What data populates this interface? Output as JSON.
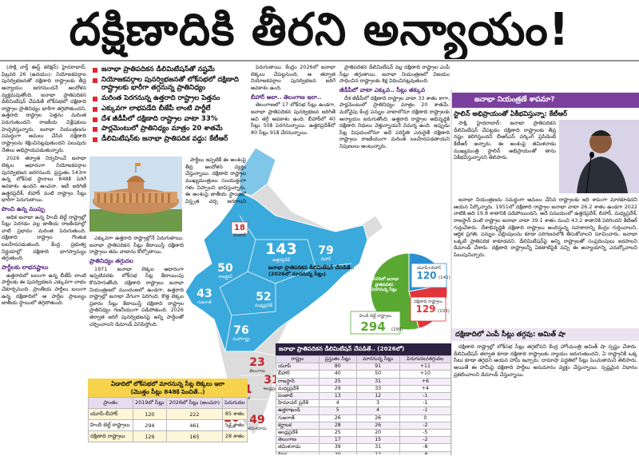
{
  "headline": "దక్షిణాదికి తీరని అన్యాయం!",
  "bullets": [
    "జనాభా ప్రాతిపదికన డీలిమిటేషన్‌తో నష్టమే",
    "నియోజకవర్గాల పునర్విభజనతో లోక్‌సభలో దక్షిణాది రాష్ట్రాలకు భారీగా తగ్గనున్న ప్రాతినిధ్యం",
    "మరింత పెరగనున్న ఉత్తరాది రాష్ట్రాల పెత్తనం",
    "ఎక్కువగా లాభపడేది బీజేపీ లాంటి పార్టీలే",
    "దేశ జీడీపీలో దక్షిణాది రాష్ట్రాల వాటా 33%",
    "పార్లమెంటులో ప్రాతినిధ్యం మాత్రం 20 శాతమే",
    "డీలిమిటేషన్‌కు జనాభా ప్రాతిపదిక వద్దు: కేటీఆర్"
  ],
  "columns": {
    "c1": [
      {
        "p": "(సాక్షి నార్త్ ఈస్ట్ కలెక్షన్) హైదరాబాద్, ఫిబ్రవరి 26 (ఉదయం): నియోజకవర్గాల పునర్విభజనతో దక్షిణాది రాష్ట్రాలకు తీవ్ర అన్యాయం జరగనుందనే ఆందోళన వ్యక్తమవుతోంది. జనాభా ప్రాతిపదికన డీలిమిటేషన్ చేపడితే లోక్‌సభలో దక్షిణాది రాష్ట్రాల ప్రాతినిధ్యం భారీగా తగ్గిపోతుందని, ఉత్తరాది రాష్ట్రాల పెత్తనం మరింత పెరుగుతుందని రాజకీయ విశ్లేషకులు హెచ్చరిస్తున్నారు. జనాభా నియంత్రణను సమర్థంగా అమలు చేసిన దక్షిణాది రాష్ట్రాలను శిక్షించినట్లవుతుందని పలువురు నేతలు అభిప్రాయపడుతున్నారు."
      },
      {
        "p": "2026 తర్వాత నిర్వహించే జనాభా లెక్కల ఆధారంగా నియోజకవర్గాల పునర్విభజన జరగనుంది. ప్రస్తుతం 543గా ఉన్న లోక్‌సభ స్థానాలు 848కి పెరిగే అవకాశం ఉందని అంచనా. అదే జరిగితే ఉత్తరప్రదేశ్, బిహార్ వంటి రాష్ట్రాల సీట్లు భారీగా పెరుగుతాయి."
      },
      {
        "h": "పొంచి ఉన్న ముప్పు"
      },
      {
        "p": "అధిక జనాభా ఉన్న హిందీ బెల్ట్ రాష్ట్రాల్లో సీట్లు పెరగడం వల్ల జాతీయ రాజకీయాల్లో వాటి ప్రభావం మరింత పెరుగుతుంది. దక్షిణాది రాష్ట్రాల గొంతుక బలహీనపడుతుంది. కేంద్ర ప్రభుత్వ నిర్ణయాల్లో దక్షిణాది భాగస్వామ్యం తగ్గుతుంది."
      },
      {
        "h": "పార్టీలకు లాభనష్టాలు"
      },
      {
        "p": "ఉత్తరాదిలో బలంగా ఉన్న బీజేపీ లాంటి పార్టీలకు ఈ పునర్విభజన ఎక్కువగా లాభం చేకూర్చనుంది. ప్రాంతీయ పార్టీలు బలంగా ఉన్న దక్షిణాదిలో ఆ పార్టీల ప్రాబల్యం జాతీయ స్థాయిలో తగ్గిపోతుంది."
      }
    ],
    "c2": [
      {
        "p": "ఎక్కువగా ఉత్తరాది రాష్ట్రాల్లోనే పెరుగుతాయి. జనాభా ప్రాతిపదికన సీట్లు కేటాయిస్తే దక్షిణాది రాష్ట్రాలు తమ వాటాను కోల్పోతాయి."
      },
      {
        "h": "ప్రాతినిధ్యం తగ్గుదల"
      },
      {
        "p": "1971 జనాభా లెక్కల ఆధారంగా ఇప్పటివరకు లోక్‌సభ సీట్ల కేటాయింపు కొనసాగుతోంది. దక్షిణాది రాష్ట్రాలు జనాభా నియంత్రణలో ముందంజలో ఉండగా, ఉత్తరాది రాష్ట్రాల్లో జనాభా వేగంగా పెరిగింది. కొత్త లెక్కల ప్రకారం సీట్లు కేటాయిస్తే దక్షిణాది రాష్ట్రాల ప్రాతినిధ్యం గణనీయంగా పడిపోతుంది. 2026 తర్వాత జరిగే పునర్విభజనపై అన్ని పార్టీలతో చర్చించాలని డిమాండ్ వినిపిస్తోంది."
      }
    ],
    "c2b": [
      {
        "p": "పార్టీలు ఇప్పటికే ఈ అంశంపై తీవ్ర ఆందోళన వ్యక్తం చేస్తున్నాయి. దక్షిణాది రాష్ట్రాల ముఖ్యమంత్రులు సంయుక్తంగా గళం విప్పాలని భావిస్తున్నారు. ఈ అంశంపై జాతీయ స్థాయిలో విస్తృత చర్చ జరగాలని కోరుతున్నారు."
      }
    ],
    "c3": [
      {
        "p": "పెరుగుతాయి. కేంద్రం 2026లో జనాభా లెక్కలు చేపట్టనుంది. ఆ తర్వాత నియోజకవర్గాల పునర్విభజన జరిగే అవకాశం ఉంది."
      },
      {
        "h": "బీహార్ అలా.. తెలంగాణ ఇలా.."
      },
      {
        "p": "తెలంగాణలో 17 లోక్‌సభ సీట్లు ఉండగా, జనాభా ప్రాతిపదికన పునర్విభజన జరిగితే అవి తగ్గే అవకాశం ఉంది. బీహార్‌లో 40 సీట్లు 50కి పెరగనున్నాయి. ఉత్తరప్రదేశ్‌లో 80 సీట్లు 91కి చేరనున్నాయి."
      }
    ],
    "c4": [
      {
        "p": "ప్రాతిపదికన డీలిమిటేషన్ వల్ల దక్షిణాది రాష్ట్రాల ఎంపీ సీట్లు తగ్గుతాయి. జనాభా నియంత్రణలో విజయం సాధించిన రాష్ట్రాలకు శిక్ష విధించినట్లవుతుంది."
      },
      {
        "h": "జీడీపీలో వాటా ఎక్కువ.. సీట్లు తక్కువ"
      },
      {
        "p": "దేశ జీడీపీలో దక్షిణాది రాష్ట్రాల వాటా 33 శాతం కాగా, పార్లమెంటులో ప్రాతినిధ్యం మాత్రం 20 శాతమే. మరోవైపు కేంద్ర పన్నుల వాటాలోనూ దక్షిణాది రాష్ట్రాలకు అన్యాయం జరుగుతోంది. ఉత్తరాది రాష్ట్రాల అభివృద్ధికి దక్షిణాది నిధులు వెళ్తున్నాయనే విమర్శ ఉంది. ఇప్పుడు సీట్ల విషయంలోనూ అదే పరిస్థితి ఎదురైతే దక్షిణాది రాష్ట్రాలు రాజకీయంగా మరింత బలహీనపడతాయని నిపుణులు అంటున్నారు."
      }
    ],
    "r1": [
      {
        "p": "సాక్షి, హైదరాబాద్: జనాభా ప్రాతిపదికన డీలిమిటేషన్ చేపట్టడం దక్షిణాది రాష్ట్రాలకు తీవ్ర నష్టం కలిగిస్తుందని బీఆర్‌ఎస్ వర్కింగ్ ప్రెసిడెంట్ కేటీఆర్ అన్నారు. ఈ అంశంపై తమిళనాడు ముఖ్యమంత్రి స్టాలిన్ అభిప్రాయంతో తాను ఏకీభవిస్తున్నానని తెలిపారు."
      }
    ],
    "r2": [
      {
        "p": "జనాభా నియంత్రణను సమర్థంగా అమలు చేసిన రాష్ట్రాలకు ఇది శాపంగా మారకూడదని ఆయన పేర్కొన్నారు. 1951లో దక్షిణాది రాష్ట్రాల జనాభా వాటా 26.2 శాతం ఉండగా 2022 నాటికి అది 19.8 శాతానికి పడిపోయిందని, అదే సమయంలో ఉత్తరప్రదేశ్, బిహార్, మధ్యప్రదేశ్, రాజస్థాన్ వంటి రాష్ట్రాల జనాభా వాటా 39.1 శాతం నుంచి 43.2 శాతానికి పెరిగిందని కేటీఆర్ గుర్తుచేశారు. దేశాభివృద్ధికి దక్షిణాది రాష్ట్రాలు అందిస్తున్న సహకారాన్ని కేంద్రం గుర్తించాలని, ఆర్థిక ప్రగతి, పన్నుల చెల్లింపులను కూడా పరిగణనలోకి తీసుకోవాలని సూచించారు. జనాభా ఒక్కటే ప్రాతిపదిక కాకూడదని, డీలిమిటేషన్‌పై అన్ని రాష్ట్రాలతో సంప్రదింపులు జరపాలని డిమాండ్ చేశారు. దక్షిణాది రాష్ట్రాలన్నీ ఏకతాటిపైకి వచ్చి ఈ అన్యాయాన్ని ఎదుర్కోవాలని పిలుపునిచ్చారు."
      }
    ],
    "r3": [
      {
        "p": "దక్షిణాది రాష్ట్రాల్లో లోక్‌సభ సీట్లు తగ్గబోవని కేంద్ర హోంమంత్రి అమిత్ షా స్పష్టం చేశారు. డీలిమిటేషన్ తర్వాత కూడా దక్షిణాది రాష్ట్రాలకు న్యాయం జరుగుతుందని, ఏ రాష్ట్రానికీ ఒక్క సీటు కూడా తగ్గదని ఆయన హామీ ఇచ్చారు. దామాషా పద్ధతిలో సీట్లు పెంచుతామని తెలిపారు. అయితే ఈ హామీపై దక్షిణాది పార్టీలు అనుమానం వ్యక్తం చేస్తున్నాయి. స్పష్టమైన విధానం ప్రకటించాలని డిమాండ్ చేస్తున్నాయి."
      }
    ]
  },
  "map": {
    "caption_title": "జనాభా ప్రాతిపదికన డీలిమిటేషన్ చేపడితే..",
    "caption_sub": "(2026లో మారనున్న సీట్లు)",
    "states": [
      {
        "name": "పంజాబ్",
        "seats": 18
      },
      {
        "name": "ఉత్తరప్రదేశ్",
        "seats": 143
      },
      {
        "name": "బిహార్",
        "seats": 79
      },
      {
        "name": "రాజస్థాన్",
        "seats": 50
      },
      {
        "name": "గుజరాత్",
        "seats": 43
      },
      {
        "name": "మధ్యప్రదేశ్",
        "seats": 52
      },
      {
        "name": "మహారాష్ట్ర",
        "seats": 76
      },
      {
        "name": "తెలంగాణ",
        "seats": 23
      },
      {
        "name": "ఆంధ్రప్రదేశ్",
        "seats": 31
      },
      {
        "name": "కర్ణాటక",
        "seats": 41
      },
      {
        "name": "కేరళ",
        "seats": 20
      },
      {
        "name": "తమిళనాడు",
        "seats": 49
      }
    ]
  },
  "pie": {
    "caption": "2026లో జనాభా ప్రాతిపదికన పెరగనున్న సీట్లు",
    "slices": [
      {
        "label": "యూపీ+బిహార్",
        "value": 120,
        "previous": "(141)",
        "color": "#2b8fd3"
      },
      {
        "label": "దక్షిణాది రాష్ట్రాలు",
        "value": 129,
        "previous": "(103)",
        "color": "#e2343a"
      },
      {
        "label": "హిందీ బెల్ట్ రాష్ట్రాలు",
        "value": 294,
        "previous": "(299)",
        "color": "#5aa933"
      }
    ]
  },
  "table_states": {
    "title": "జనాభా ప్రాతిపదికన డీలిమిటేషన్ చేపడితే.. (2026లో)",
    "header": [
      "రాష్ట్రం",
      "ప్రస్తుతం సీట్లు",
      "మారనున్న సీట్లు",
      "పెరుగుదల/తగ్గుదల"
    ],
    "rows": [
      [
        "యూపీ",
        80,
        91,
        "+11"
      ],
      [
        "బీహార్",
        40,
        50,
        "+10"
      ],
      [
        "రాజస్థాన్",
        25,
        31,
        "+6"
      ],
      [
        "మధ్యప్రదేశ్",
        29,
        33,
        "+4"
      ],
      [
        "పంజాబ్",
        13,
        12,
        "-1"
      ],
      [
        "హిమాచల్ ప్రదేశ్",
        4,
        3,
        "-1"
      ],
      [
        "ఉత్తరాఖండ్",
        5,
        4,
        "-1"
      ],
      [
        "గుజరాత్",
        26,
        26,
        "0"
      ],
      [
        "కర్ణాటక",
        28,
        26,
        "-2"
      ],
      [
        "ఆంధ్రప్రదేశ్",
        25,
        20,
        "-5"
      ],
      [
        "తెలంగాణ",
        17,
        15,
        "-2"
      ],
      [
        "తమిళనాడు",
        39,
        31,
        "-8"
      ],
      [
        "కేరళ",
        20,
        12,
        "-8"
      ]
    ]
  },
  "table_regions": {
    "title": "ఏడాదిలో లోక్‌సభలో మారనున్న సీట్ల లెక్కలు ఇలా",
    "subtitle": "(మొత్తం సీట్లు 848కి పెంచితే..)",
    "header": [
      "ప్రాంతం",
      "2019లో సీట్లు",
      "2026లో సీట్లు (అంచనా)",
      "పెరుగుదల"
    ],
    "rows": [
      [
        "యూపీ-బీహార్",
        120,
        222,
        "85 శాతం"
      ],
      [
        "హిందీ బెల్ట్ రాష్ట్రాలు",
        294,
        461,
        "57 శాతం"
      ],
      [
        "దక్షిణాది రాష్ట్రాలు",
        129,
        165,
        "28 శాతం"
      ]
    ]
  },
  "side": {
    "band": "జనాభా నియంత్రణే శాపమా?",
    "sub1": "స్టాలిన్ అభిప్రాయంతో ఏకీభవిస్తున్నా: కేటీఆర్",
    "sub2": "దక్షిణాదిలో ఎంపీ సీట్లు తగ్గవు: అమిత్ షా"
  }
}
